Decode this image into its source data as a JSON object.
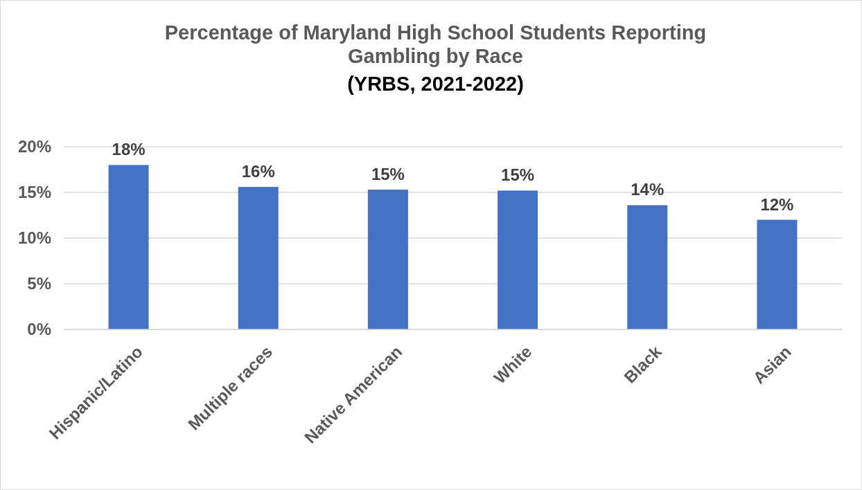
{
  "chart_data": {
    "type": "bar",
    "title": "Percentage of Maryland High School Students Reporting Gambling by Race",
    "subtitle": "(YRBS, 2021-2022)",
    "categories": [
      "Hispanic/Latino",
      "Multiple races",
      "Native American",
      "White",
      "Black",
      "Asian"
    ],
    "values": [
      18,
      15.6,
      15.3,
      15.2,
      13.6,
      12.0
    ],
    "value_labels": [
      "18%",
      "16%",
      "15%",
      "15%",
      "14%",
      "12%"
    ],
    "color": "#4472c4",
    "ylim": [
      0,
      20
    ],
    "yticks": [
      {
        "value": 0,
        "label": "0%"
      },
      {
        "value": 5,
        "label": "5%"
      },
      {
        "value": 10,
        "label": "10%"
      },
      {
        "value": 15,
        "label": "15%"
      },
      {
        "value": 20,
        "label": "20%"
      }
    ],
    "grid": "y"
  }
}
